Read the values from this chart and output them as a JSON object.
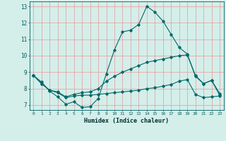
{
  "title": "",
  "xlabel": "Humidex (Indice chaleur)",
  "background_color": "#d4eeea",
  "plot_bg_color": "#d4eeea",
  "line_color": "#006868",
  "grid_color": "#e89898",
  "xlim": [
    -0.5,
    23.5
  ],
  "ylim": [
    6.7,
    13.3
  ],
  "yticks": [
    7,
    8,
    9,
    10,
    11,
    12,
    13
  ],
  "xticks": [
    0,
    1,
    2,
    3,
    4,
    5,
    6,
    7,
    8,
    9,
    10,
    11,
    12,
    13,
    14,
    15,
    16,
    17,
    18,
    19,
    20,
    21,
    22,
    23
  ],
  "line1_x": [
    0,
    1,
    2,
    3,
    4,
    5,
    6,
    7,
    8,
    9,
    10,
    11,
    12,
    13,
    14,
    15,
    16,
    17,
    18,
    19,
    20,
    21,
    22,
    23
  ],
  "line1_y": [
    8.8,
    8.4,
    7.85,
    7.5,
    7.05,
    7.2,
    6.85,
    6.9,
    7.4,
    8.9,
    10.35,
    11.45,
    11.55,
    11.9,
    13.0,
    12.65,
    12.1,
    11.3,
    10.5,
    10.1,
    8.75,
    8.3,
    8.5,
    7.6
  ],
  "line2_x": [
    0,
    1,
    2,
    3,
    4,
    5,
    6,
    7,
    8,
    9,
    10,
    11,
    12,
    13,
    14,
    15,
    16,
    17,
    18,
    19,
    20,
    21,
    22,
    23
  ],
  "line2_y": [
    8.8,
    8.3,
    7.9,
    7.8,
    7.5,
    7.65,
    7.75,
    7.8,
    8.0,
    8.45,
    8.75,
    9.0,
    9.2,
    9.4,
    9.6,
    9.7,
    9.8,
    9.9,
    10.0,
    10.05,
    8.8,
    8.3,
    8.5,
    7.7
  ],
  "line3_x": [
    0,
    1,
    2,
    3,
    4,
    5,
    6,
    7,
    8,
    9,
    10,
    11,
    12,
    13,
    14,
    15,
    16,
    17,
    18,
    19,
    20,
    21,
    22,
    23
  ],
  "line3_y": [
    8.8,
    8.3,
    7.9,
    7.75,
    7.45,
    7.55,
    7.6,
    7.6,
    7.65,
    7.7,
    7.75,
    7.8,
    7.85,
    7.9,
    8.0,
    8.05,
    8.15,
    8.25,
    8.45,
    8.55,
    7.65,
    7.45,
    7.5,
    7.55
  ],
  "figsize": [
    3.2,
    2.0
  ],
  "dpi": 100
}
